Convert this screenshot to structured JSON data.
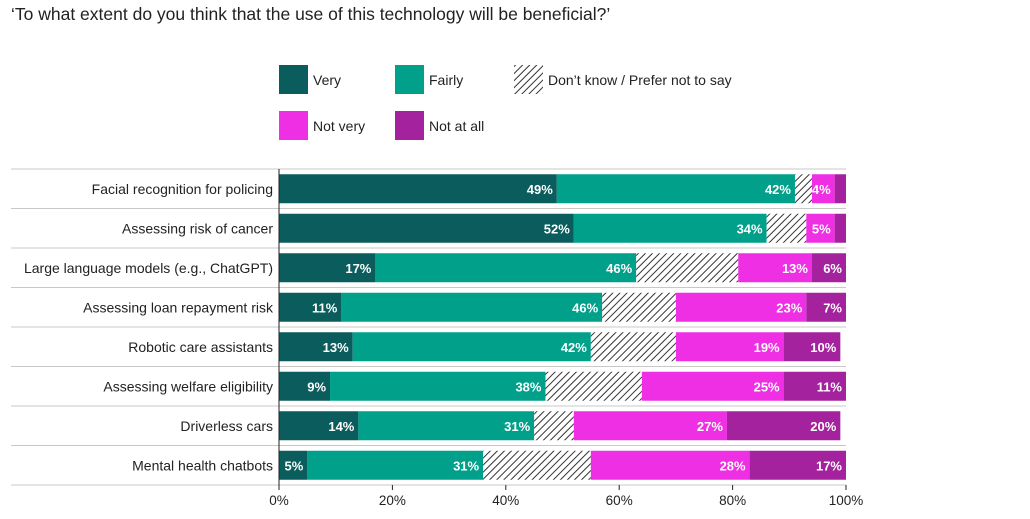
{
  "chart_data": {
    "type": "bar",
    "orientation": "horizontal",
    "stacked": true,
    "title": "‘To what extent do you think that the use of this technology will be beneficial?’",
    "categories": [
      "Facial recognition for policing",
      "Assessing risk of cancer",
      "Large language models (e.g., ChatGPT)",
      "Assessing loan repayment risk",
      "Robotic care assistants",
      "Assessing welfare eligibility",
      "Driverless cars",
      "Mental health chatbots"
    ],
    "series": [
      {
        "name": "Very",
        "color": "#0b5c5c",
        "values": [
          49,
          52,
          17,
          11,
          13,
          9,
          14,
          5
        ],
        "labels": [
          "49%",
          "52%",
          "17%",
          "11%",
          "13%",
          "9%",
          "14%",
          "5%"
        ]
      },
      {
        "name": "Fairly",
        "color": "#00a08a",
        "values": [
          42,
          34,
          46,
          46,
          42,
          38,
          31,
          31
        ],
        "labels": [
          "42%",
          "34%",
          "46%",
          "46%",
          "42%",
          "38%",
          "31%",
          "31%"
        ]
      },
      {
        "name": "Don’t know / Prefer not to say",
        "color": "hatched",
        "values": [
          3,
          7,
          18,
          13,
          15,
          17,
          7,
          19
        ],
        "labels": [
          "",
          "",
          "",
          "",
          "",
          "",
          "",
          ""
        ]
      },
      {
        "name": "Not very",
        "color": "#ee2fe3",
        "values": [
          4,
          5,
          13,
          23,
          19,
          25,
          27,
          28
        ],
        "labels": [
          "4%",
          "5%",
          "13%",
          "23%",
          "19%",
          "25%",
          "27%",
          "28%"
        ]
      },
      {
        "name": "Not at all",
        "color": "#a4229d",
        "values": [
          2,
          2,
          6,
          7,
          10,
          11,
          20,
          17
        ],
        "labels": [
          "",
          "",
          "6%",
          "7%",
          "10%",
          "11%",
          "20%",
          "17%"
        ]
      }
    ],
    "xlim": [
      0,
      100
    ],
    "xticks": [
      "0%",
      "20%",
      "40%",
      "60%",
      "80%",
      "100%"
    ],
    "xlabel": "",
    "ylabel": "",
    "legend_position": "top-right",
    "grid": false
  }
}
